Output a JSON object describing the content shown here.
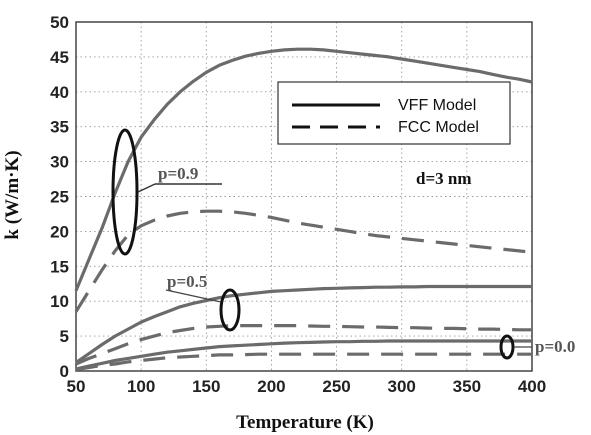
{
  "chart_data": {
    "type": "line",
    "xlabel": "Temperature (K)",
    "ylabel": "k (W/m·K)",
    "xlim": [
      50,
      400
    ],
    "ylim": [
      0,
      50
    ],
    "xticks": [
      50,
      100,
      150,
      200,
      250,
      300,
      350,
      400
    ],
    "yticks": [
      0,
      5,
      10,
      15,
      20,
      25,
      30,
      35,
      40,
      45,
      50
    ],
    "grid": true,
    "legend": {
      "placement": "top-right",
      "entries": [
        {
          "label": "VFF Model",
          "style": "solid"
        },
        {
          "label": "FCC Model",
          "style": "dashed"
        }
      ]
    },
    "annotations": {
      "p09": "p=0.9",
      "p05": "p=0.5",
      "p00": "p=0.0",
      "d": "d=3 nm"
    },
    "line_color": "#6b6b6b",
    "series": [
      {
        "group": "p=0.9",
        "model": "VFF Model",
        "style": "solid",
        "x": [
          50,
          60,
          70,
          80,
          90,
          100,
          110,
          120,
          130,
          140,
          150,
          160,
          170,
          180,
          190,
          200,
          210,
          220,
          230,
          240,
          250,
          260,
          270,
          280,
          290,
          300,
          310,
          320,
          330,
          340,
          350,
          360,
          370,
          380,
          390,
          400
        ],
        "y": [
          11.5,
          16,
          20.5,
          25.5,
          30,
          33.5,
          36,
          38.2,
          40,
          41.5,
          42.8,
          43.8,
          44.5,
          45.1,
          45.5,
          45.8,
          46.0,
          46.1,
          46.1,
          46.0,
          45.8,
          45.6,
          45.4,
          45.2,
          45.0,
          44.7,
          44.4,
          44.1,
          43.8,
          43.5,
          43.2,
          42.9,
          42.5,
          42.1,
          41.8,
          41.4
        ]
      },
      {
        "group": "p=0.9",
        "model": "FCC Model",
        "style": "dashed",
        "x": [
          50,
          60,
          70,
          80,
          90,
          100,
          110,
          120,
          130,
          140,
          150,
          160,
          170,
          180,
          190,
          200,
          210,
          220,
          230,
          240,
          250,
          260,
          270,
          280,
          290,
          300,
          310,
          320,
          330,
          340,
          350,
          360,
          370,
          380,
          390,
          400
        ],
        "y": [
          8.5,
          11.5,
          14.5,
          17.2,
          19.5,
          20.8,
          21.6,
          22.2,
          22.6,
          22.8,
          22.9,
          22.9,
          22.8,
          22.6,
          22.3,
          22.0,
          21.6,
          21.2,
          20.9,
          20.6,
          20.3,
          20.0,
          19.7,
          19.4,
          19.2,
          19.0,
          18.8,
          18.6,
          18.4,
          18.2,
          18.0,
          17.8,
          17.6,
          17.4,
          17.2,
          17.0
        ]
      },
      {
        "group": "p=0.5",
        "model": "VFF Model",
        "style": "solid",
        "x": [
          50,
          60,
          70,
          80,
          90,
          100,
          110,
          120,
          130,
          140,
          150,
          160,
          170,
          180,
          190,
          200,
          210,
          220,
          230,
          240,
          250,
          260,
          270,
          280,
          290,
          300,
          310,
          320,
          330,
          340,
          350,
          360,
          370,
          380,
          390,
          400
        ],
        "y": [
          1.2,
          2.5,
          3.8,
          5.0,
          6.0,
          7.0,
          7.8,
          8.5,
          9.2,
          9.7,
          10.1,
          10.5,
          10.8,
          11.0,
          11.2,
          11.4,
          11.5,
          11.6,
          11.7,
          11.8,
          11.85,
          11.9,
          11.95,
          12.0,
          12.0,
          12.05,
          12.05,
          12.1,
          12.1,
          12.1,
          12.1,
          12.1,
          12.1,
          12.1,
          12.1,
          12.1
        ]
      },
      {
        "group": "p=0.5",
        "model": "FCC Model",
        "style": "dashed",
        "x": [
          50,
          60,
          70,
          80,
          90,
          100,
          110,
          120,
          130,
          140,
          150,
          160,
          170,
          180,
          190,
          200,
          210,
          220,
          230,
          240,
          250,
          260,
          270,
          280,
          290,
          300,
          310,
          320,
          330,
          340,
          350,
          360,
          370,
          380,
          390,
          400
        ],
        "y": [
          1.0,
          1.8,
          2.5,
          3.2,
          3.9,
          4.5,
          5.0,
          5.5,
          5.8,
          6.1,
          6.3,
          6.4,
          6.5,
          6.5,
          6.5,
          6.5,
          6.5,
          6.5,
          6.45,
          6.4,
          6.4,
          6.35,
          6.3,
          6.3,
          6.25,
          6.2,
          6.2,
          6.15,
          6.1,
          6.1,
          6.05,
          6.0,
          6.0,
          5.95,
          5.9,
          5.9
        ]
      },
      {
        "group": "p=0.0",
        "model": "VFF Model",
        "style": "solid",
        "x": [
          50,
          60,
          70,
          80,
          90,
          100,
          110,
          120,
          130,
          140,
          150,
          160,
          170,
          180,
          190,
          200,
          210,
          220,
          230,
          240,
          250,
          260,
          270,
          280,
          290,
          300,
          310,
          320,
          330,
          340,
          350,
          360,
          370,
          380,
          390,
          400
        ],
        "y": [
          0.3,
          0.7,
          1.1,
          1.5,
          1.8,
          2.1,
          2.4,
          2.7,
          2.9,
          3.1,
          3.3,
          3.5,
          3.6,
          3.7,
          3.8,
          3.9,
          4.0,
          4.05,
          4.1,
          4.15,
          4.2,
          4.2,
          4.25,
          4.25,
          4.3,
          4.3,
          4.3,
          4.3,
          4.3,
          4.3,
          4.3,
          4.3,
          4.3,
          4.3,
          4.3,
          4.3
        ]
      },
      {
        "group": "p=0.0",
        "model": "FCC Model",
        "style": "dashed",
        "x": [
          50,
          60,
          70,
          80,
          90,
          100,
          110,
          120,
          130,
          140,
          150,
          160,
          170,
          180,
          190,
          200,
          210,
          220,
          230,
          240,
          250,
          260,
          270,
          280,
          290,
          300,
          310,
          320,
          330,
          340,
          350,
          360,
          370,
          380,
          390,
          400
        ],
        "y": [
          0.2,
          0.5,
          0.8,
          1.0,
          1.3,
          1.5,
          1.7,
          1.9,
          2.0,
          2.1,
          2.2,
          2.3,
          2.3,
          2.35,
          2.4,
          2.4,
          2.4,
          2.4,
          2.4,
          2.4,
          2.4,
          2.4,
          2.4,
          2.4,
          2.4,
          2.4,
          2.4,
          2.4,
          2.4,
          2.4,
          2.4,
          2.4,
          2.4,
          2.4,
          2.4,
          2.4
        ]
      }
    ]
  }
}
